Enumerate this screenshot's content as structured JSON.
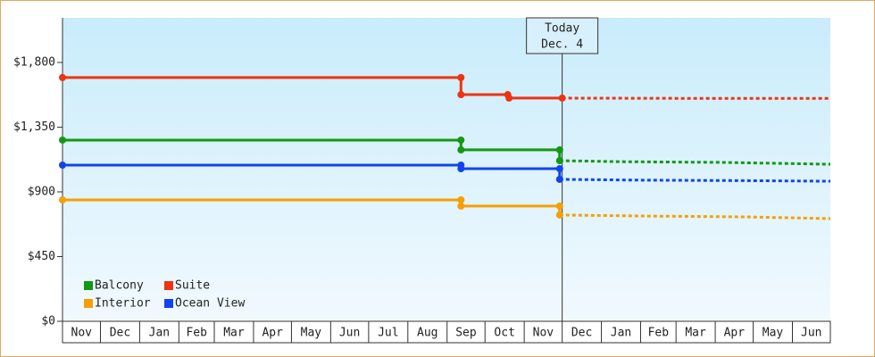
{
  "chart_data": {
    "type": "step-line",
    "xlim": [
      0,
      607
    ],
    "ylim": [
      0,
      2110
    ],
    "yticks": [
      {
        "value": 0,
        "label": "$0"
      },
      {
        "value": 450,
        "label": "$450"
      },
      {
        "value": 900,
        "label": "$900"
      },
      {
        "value": 1350,
        "label": "$1,350"
      },
      {
        "value": 1800,
        "label": "$1,800"
      }
    ],
    "xticks": [
      {
        "value": 0,
        "label": "Nov"
      },
      {
        "value": 30,
        "label": "Dec"
      },
      {
        "value": 61,
        "label": "Jan"
      },
      {
        "value": 92,
        "label": "Feb"
      },
      {
        "value": 120,
        "label": "Mar"
      },
      {
        "value": 151,
        "label": "Apr"
      },
      {
        "value": 181,
        "label": "May"
      },
      {
        "value": 212,
        "label": "Jun"
      },
      {
        "value": 242,
        "label": "Jul"
      },
      {
        "value": 273,
        "label": "Aug"
      },
      {
        "value": 304,
        "label": "Sep"
      },
      {
        "value": 334,
        "label": "Oct"
      },
      {
        "value": 365,
        "label": "Nov"
      },
      {
        "value": 395,
        "label": "Dec"
      },
      {
        "value": 426,
        "label": "Jan"
      },
      {
        "value": 457,
        "label": "Feb"
      },
      {
        "value": 485,
        "label": "Mar"
      },
      {
        "value": 516,
        "label": "Apr"
      },
      {
        "value": 546,
        "label": "May"
      },
      {
        "value": 577,
        "label": "Jun"
      }
    ],
    "annotation": {
      "x": 395,
      "lines": [
        "Today",
        "Dec. 4"
      ]
    },
    "series": [
      {
        "name": "Balcony",
        "color": "#119911",
        "x": [
          0,
          315,
          315,
          393,
          393
        ],
        "values": [
          1260,
          1260,
          1192,
          1192,
          1117
        ],
        "forecast": {
          "x": [
            393,
            440,
            520,
            607
          ],
          "values": [
            1117,
            1110,
            1105,
            1092
          ]
        }
      },
      {
        "name": "Suite",
        "color": "#ee3311",
        "x": [
          0,
          315,
          315,
          352,
          353,
          395
        ],
        "values": [
          1695,
          1695,
          1576,
          1576,
          1552,
          1552
        ],
        "forecast": {
          "x": [
            395,
            500,
            607
          ],
          "values": [
            1552,
            1550,
            1550
          ]
        }
      },
      {
        "name": "Interior",
        "color": "#f5a000",
        "x": [
          0,
          315,
          315,
          393,
          393
        ],
        "values": [
          844,
          844,
          801,
          801,
          739
        ],
        "forecast": {
          "x": [
            393,
            460,
            540,
            607
          ],
          "values": [
            739,
            732,
            726,
            714
          ]
        }
      },
      {
        "name": "Ocean View",
        "color": "#1144ee",
        "x": [
          0,
          315,
          315,
          393,
          393
        ],
        "values": [
          1086,
          1086,
          1061,
          1061,
          987
        ],
        "forecast": {
          "x": [
            393,
            450,
            540,
            607
          ],
          "values": [
            987,
            982,
            978,
            974
          ]
        }
      }
    ]
  }
}
